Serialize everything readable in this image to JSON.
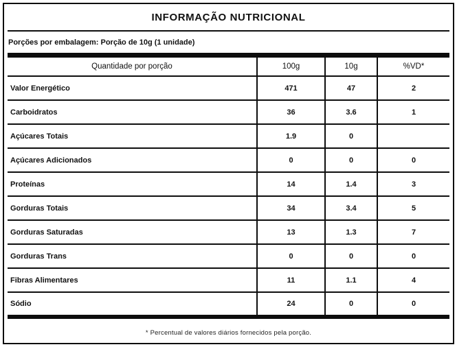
{
  "title": "INFORMAÇÃO NUTRICIONAL",
  "servings_line": "Porções por embalagem: Porção de 10g (1 unidade)",
  "table": {
    "headers": {
      "main": "Quantidade por porção",
      "col_100g": "100g",
      "col_10g": "10g",
      "col_vd": "%VD*"
    },
    "rows": [
      {
        "label": "Valor Energético",
        "per100g": "471",
        "per10g": "47",
        "vd": "2"
      },
      {
        "label": "Carboidratos",
        "per100g": "36",
        "per10g": "3.6",
        "vd": "1"
      },
      {
        "label": "Açúcares Totais",
        "per100g": "1.9",
        "per10g": "0",
        "vd": ""
      },
      {
        "label": "Açúcares Adicionados",
        "per100g": "0",
        "per10g": "0",
        "vd": "0"
      },
      {
        "label": "Proteínas",
        "per100g": "14",
        "per10g": "1.4",
        "vd": "3"
      },
      {
        "label": "Gorduras Totais",
        "per100g": "34",
        "per10g": "3.4",
        "vd": "5"
      },
      {
        "label": "Gorduras Saturadas",
        "per100g": "13",
        "per10g": "1.3",
        "vd": "7"
      },
      {
        "label": "Gorduras Trans",
        "per100g": "0",
        "per10g": "0",
        "vd": "0"
      },
      {
        "label": "Fibras Alimentares",
        "per100g": "11",
        "per10g": "1.1",
        "vd": "4"
      },
      {
        "label": "Sódio",
        "per100g": "24",
        "per10g": "0",
        "vd": "0"
      }
    ]
  },
  "footnote": "* Percentual de valores diários fornecidos pela porção.",
  "colors": {
    "ink": "#0d0d0d",
    "background": "#ffffff"
  }
}
